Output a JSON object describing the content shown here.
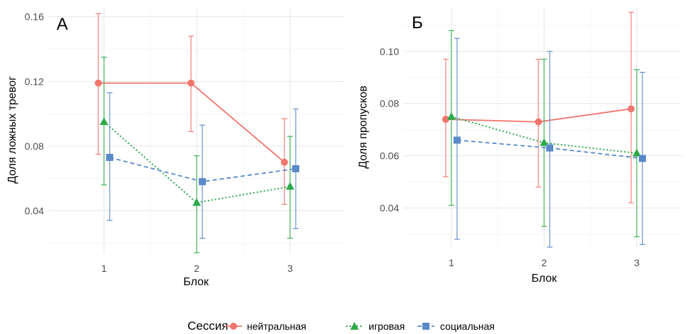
{
  "legend": {
    "title": "Сессия",
    "items": [
      {
        "label": "нейтральная",
        "color": "#F0756D",
        "marker": "circle",
        "dash": "solid"
      },
      {
        "label": "игровая",
        "color": "#2DAA4A",
        "marker": "triangle",
        "dash": "dotted"
      },
      {
        "label": "социальная",
        "color": "#5B8ACA",
        "marker": "square",
        "dash": "dashed"
      }
    ]
  },
  "chart_data": [
    {
      "type": "line",
      "panel": "А",
      "xlabel": "Блок",
      "ylabel": "Доля ложных тревог",
      "categories": [
        "1",
        "2",
        "3"
      ],
      "ylim": [
        0.014,
        0.166
      ],
      "yticks": [
        0.04,
        0.08,
        0.12,
        0.16
      ],
      "ytick_labels": [
        "0.04",
        "0.08",
        "0.12",
        "0.16"
      ],
      "grid": true,
      "series": [
        {
          "name": "нейтральная",
          "values": [
            0.119,
            0.119,
            0.07
          ],
          "lower": [
            0.075,
            0.089,
            0.044
          ],
          "upper": [
            0.162,
            0.148,
            0.097
          ]
        },
        {
          "name": "игровая",
          "values": [
            0.095,
            0.045,
            0.055
          ],
          "lower": [
            0.056,
            0.014,
            0.023
          ],
          "upper": [
            0.135,
            0.074,
            0.086
          ]
        },
        {
          "name": "социальная",
          "values": [
            0.073,
            0.058,
            0.066
          ],
          "lower": [
            0.034,
            0.023,
            0.029
          ],
          "upper": [
            0.113,
            0.093,
            0.103
          ]
        }
      ]
    },
    {
      "type": "line",
      "panel": "Б",
      "xlabel": "Блок",
      "ylabel": "Доля пропусков",
      "categories": [
        "1",
        "2",
        "3"
      ],
      "ylim": [
        0.025,
        0.117
      ],
      "yticks": [
        0.04,
        0.06,
        0.08,
        0.1
      ],
      "ytick_labels": [
        "0.04",
        "0.06",
        "0.08",
        "0.10"
      ],
      "grid": true,
      "series": [
        {
          "name": "нейтральная",
          "values": [
            0.074,
            0.073,
            0.078
          ],
          "lower": [
            0.052,
            0.048,
            0.042
          ],
          "upper": [
            0.097,
            0.097,
            0.115
          ]
        },
        {
          "name": "игровая",
          "values": [
            0.075,
            0.065,
            0.061
          ],
          "lower": [
            0.041,
            0.033,
            0.029
          ],
          "upper": [
            0.108,
            0.097,
            0.093
          ]
        },
        {
          "name": "социальная",
          "values": [
            0.066,
            0.063,
            0.059
          ],
          "lower": [
            0.028,
            0.025,
            0.026
          ],
          "upper": [
            0.105,
            0.1,
            0.092
          ]
        }
      ]
    }
  ]
}
